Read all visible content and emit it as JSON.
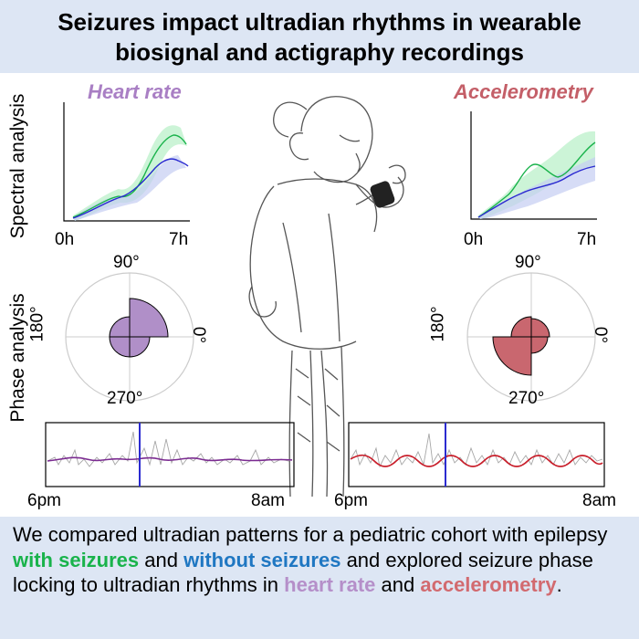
{
  "title": {
    "line1": "Seizures impact ultradian rhythms in wearable",
    "line2": "biosignal and actigraphy recordings"
  },
  "panels": {
    "heart_rate_title": "Heart rate",
    "accelerometry_title": "Accelerometry",
    "spectral_label": "Spectral analysis",
    "phase_label": "Phase analysis",
    "spectral_x_start": "0h",
    "spectral_x_end": "7h",
    "polar_top": "90°",
    "polar_left": "180°",
    "polar_right": "0°",
    "polar_bottom": "270°",
    "time_start": "6pm",
    "time_end": "8am"
  },
  "caption": {
    "part1": "We compared ultradian patterns for a pediatric cohort with epilepsy ",
    "with_seizures": "with seizures",
    "part2": " and ",
    "without_seizures": "without seizures",
    "part3": " and explored seizure phase locking to ultradian rhythms in ",
    "heart_rate": "heart rate",
    "part4": " and ",
    "accelerometry": "accelerometry",
    "part5": "."
  },
  "colors": {
    "heart_rate": "#b08fc8",
    "accelerometry": "#c9676f",
    "with_seizures": "#19b34b",
    "without_seizures": "#2b2bd0",
    "banner": "#dde6f4"
  }
}
